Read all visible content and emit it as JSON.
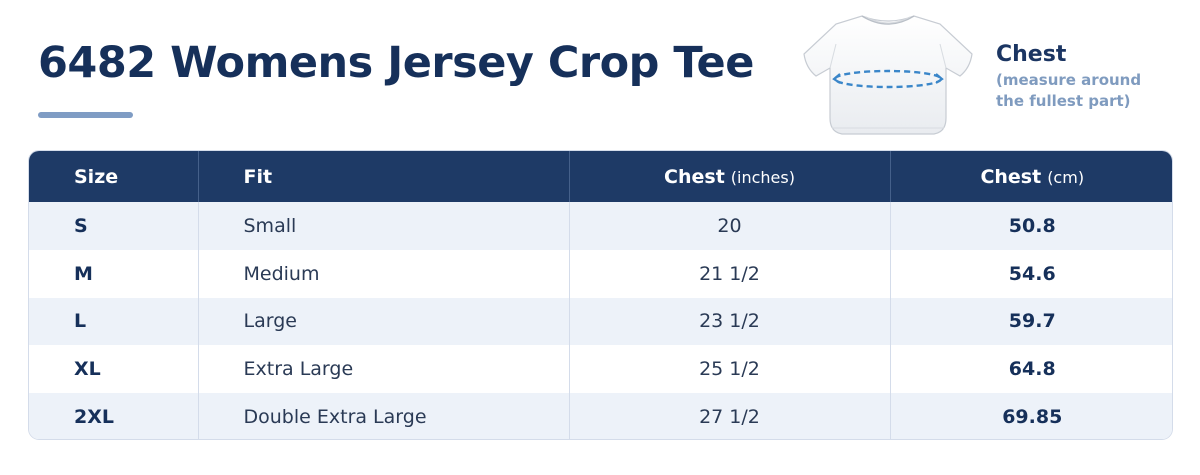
{
  "title": "6482 Womens Jersey Crop Tee",
  "measure": {
    "label": "Chest",
    "note_line1": "(measure around",
    "note_line2": "the fullest part)",
    "illustration": "crop-tee-icon"
  },
  "table": {
    "headers": {
      "size": "Size",
      "fit": "Fit",
      "chest_in": "Chest",
      "chest_in_unit": "(inches)",
      "chest_cm": "Chest",
      "chest_cm_unit": "(cm)"
    },
    "rows": [
      {
        "size": "S",
        "fit": "Small",
        "chest_in": "20",
        "chest_cm": "50.8"
      },
      {
        "size": "M",
        "fit": "Medium",
        "chest_in": "21 1/2",
        "chest_cm": "54.6"
      },
      {
        "size": "L",
        "fit": "Large",
        "chest_in": "23 1/2",
        "chest_cm": "59.7"
      },
      {
        "size": "XL",
        "fit": "Extra Large",
        "chest_in": "25 1/2",
        "chest_cm": "64.8"
      },
      {
        "size": "2XL",
        "fit": "Double Extra Large",
        "chest_in": "27 1/2",
        "chest_cm": "69.85"
      }
    ]
  },
  "colors": {
    "header_bg": "#1e3a66",
    "title": "#16305a",
    "accent": "#7f9cc4",
    "measure_line": "#3a86c9"
  }
}
